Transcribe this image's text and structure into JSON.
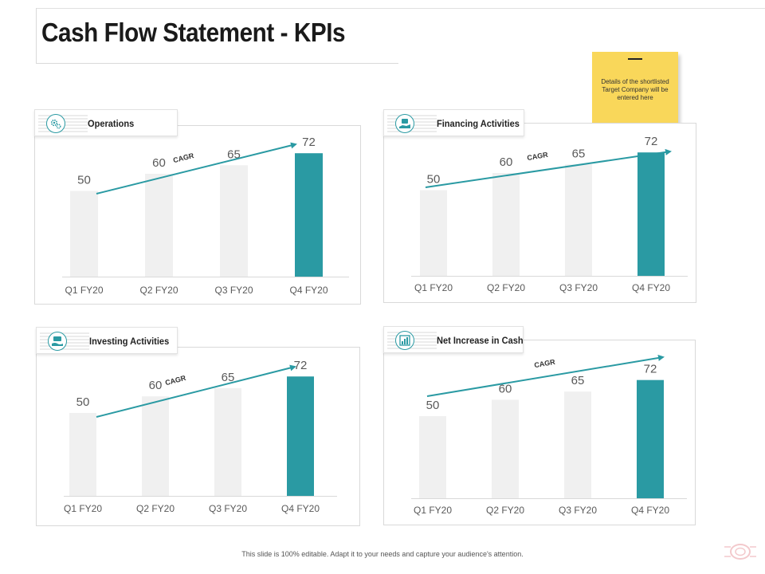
{
  "page": {
    "title": "Cash Flow Statement - KPIs",
    "footer": "This slide is 100% editable. Adapt it to your needs and capture your audience's attention.",
    "sticky_note": "Details of the shortlisted Target Company will be entered here"
  },
  "colors": {
    "accent": "#2a9aa3",
    "bar_muted": "#f0f0f0",
    "axis": "#d9d9d9",
    "value_text": "#595959",
    "sticky": "#f9d75a"
  },
  "icons": {
    "operations": "gears-icon",
    "financing": "money-hand-icon",
    "investing": "investment-icon",
    "net_increase": "bar-chart-icon"
  },
  "chart_data": [
    {
      "type": "bar",
      "title": "Operations",
      "categories": [
        "Q1 FY20",
        "Q2 FY20",
        "Q3 FY20",
        "Q4 FY20"
      ],
      "values": [
        50,
        60,
        65,
        72
      ],
      "highlight_index": 3,
      "trend_label": "CAGR",
      "ylim": [
        0,
        80
      ]
    },
    {
      "type": "bar",
      "title": "Financing Activities",
      "categories": [
        "Q1 FY20",
        "Q2 FY20",
        "Q3 FY20",
        "Q4 FY20"
      ],
      "values": [
        50,
        60,
        65,
        72
      ],
      "highlight_index": 3,
      "trend_label": "CAGR",
      "ylim": [
        0,
        80
      ]
    },
    {
      "type": "bar",
      "title": "Investing Activities",
      "categories": [
        "Q1 FY20",
        "Q2 FY20",
        "Q3 FY20",
        "Q4 FY20"
      ],
      "values": [
        50,
        60,
        65,
        72
      ],
      "highlight_index": 3,
      "trend_label": "CAGR",
      "ylim": [
        0,
        80
      ]
    },
    {
      "type": "bar",
      "title": "Net Increase in Cash",
      "categories": [
        "Q1 FY20",
        "Q2 FY20",
        "Q3 FY20",
        "Q4 FY20"
      ],
      "values": [
        50,
        60,
        65,
        72
      ],
      "highlight_index": 3,
      "trend_label": "CAGR",
      "ylim": [
        0,
        80
      ]
    }
  ]
}
